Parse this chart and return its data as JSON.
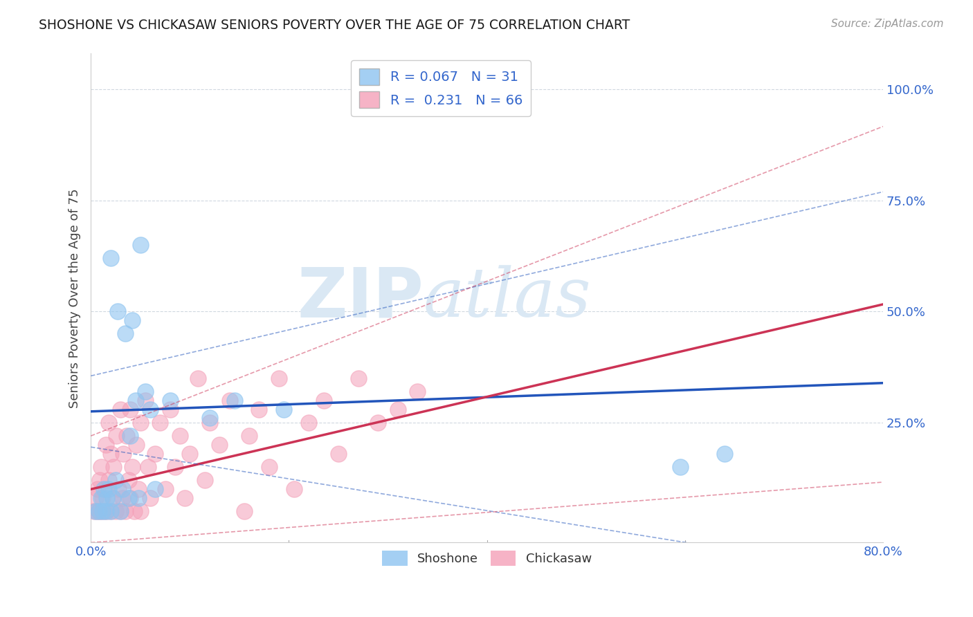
{
  "title": "SHOSHONE VS CHICKASAW SENIORS POVERTY OVER THE AGE OF 75 CORRELATION CHART",
  "source_text": "Source: ZipAtlas.com",
  "ylabel": "Seniors Poverty Over the Age of 75",
  "xlim": [
    0.0,
    0.8
  ],
  "ylim": [
    -0.02,
    1.08
  ],
  "xticks": [
    0.0,
    0.2,
    0.4,
    0.6,
    0.8
  ],
  "xticklabels": [
    "0.0%",
    "",
    "",
    "",
    "80.0%"
  ],
  "yticks": [
    0.25,
    0.5,
    0.75,
    1.0
  ],
  "yticklabels": [
    "25.0%",
    "50.0%",
    "75.0%",
    "100.0%"
  ],
  "shoshone_color": "#8ec4f0",
  "chickasaw_color": "#f4a0b8",
  "shoshone_line_color": "#2255bb",
  "chickasaw_line_color": "#cc3355",
  "shoshone_R": 0.067,
  "shoshone_N": 31,
  "chickasaw_R": 0.231,
  "chickasaw_N": 66,
  "watermark_zip": "ZIP",
  "watermark_atlas": "atlas",
  "watermark_color": "#dae8f4",
  "grid_color": "#d0d8e0",
  "shoshone_x": [
    0.005,
    0.008,
    0.01,
    0.012,
    0.013,
    0.015,
    0.016,
    0.018,
    0.02,
    0.02,
    0.022,
    0.025,
    0.027,
    0.03,
    0.032,
    0.035,
    0.038,
    0.04,
    0.042,
    0.045,
    0.048,
    0.05,
    0.055,
    0.06,
    0.065,
    0.08,
    0.12,
    0.145,
    0.195,
    0.595,
    0.64
  ],
  "shoshone_y": [
    0.05,
    0.05,
    0.08,
    0.05,
    0.1,
    0.05,
    0.08,
    0.1,
    0.05,
    0.62,
    0.08,
    0.12,
    0.5,
    0.05,
    0.1,
    0.45,
    0.08,
    0.22,
    0.48,
    0.3,
    0.08,
    0.65,
    0.32,
    0.28,
    0.1,
    0.3,
    0.26,
    0.3,
    0.28,
    0.15,
    0.18
  ],
  "chickasaw_x": [
    0.003,
    0.005,
    0.006,
    0.007,
    0.008,
    0.009,
    0.01,
    0.01,
    0.012,
    0.013,
    0.015,
    0.015,
    0.016,
    0.018,
    0.018,
    0.02,
    0.02,
    0.022,
    0.023,
    0.025,
    0.026,
    0.028,
    0.03,
    0.03,
    0.032,
    0.033,
    0.035,
    0.036,
    0.038,
    0.04,
    0.04,
    0.042,
    0.044,
    0.046,
    0.048,
    0.05,
    0.05,
    0.055,
    0.058,
    0.06,
    0.065,
    0.07,
    0.075,
    0.08,
    0.085,
    0.09,
    0.095,
    0.1,
    0.108,
    0.115,
    0.12,
    0.13,
    0.14,
    0.155,
    0.16,
    0.17,
    0.18,
    0.19,
    0.205,
    0.22,
    0.235,
    0.25,
    0.27,
    0.29,
    0.31,
    0.33
  ],
  "chickasaw_y": [
    0.05,
    0.08,
    0.05,
    0.1,
    0.05,
    0.12,
    0.05,
    0.15,
    0.08,
    0.05,
    0.1,
    0.2,
    0.05,
    0.12,
    0.25,
    0.05,
    0.18,
    0.08,
    0.15,
    0.05,
    0.22,
    0.1,
    0.05,
    0.28,
    0.08,
    0.18,
    0.05,
    0.22,
    0.12,
    0.08,
    0.28,
    0.15,
    0.05,
    0.2,
    0.1,
    0.05,
    0.25,
    0.3,
    0.15,
    0.08,
    0.18,
    0.25,
    0.1,
    0.28,
    0.15,
    0.22,
    0.08,
    0.18,
    0.35,
    0.12,
    0.25,
    0.2,
    0.3,
    0.05,
    0.22,
    0.28,
    0.15,
    0.35,
    0.1,
    0.25,
    0.3,
    0.18,
    0.35,
    0.25,
    0.28,
    0.32
  ]
}
